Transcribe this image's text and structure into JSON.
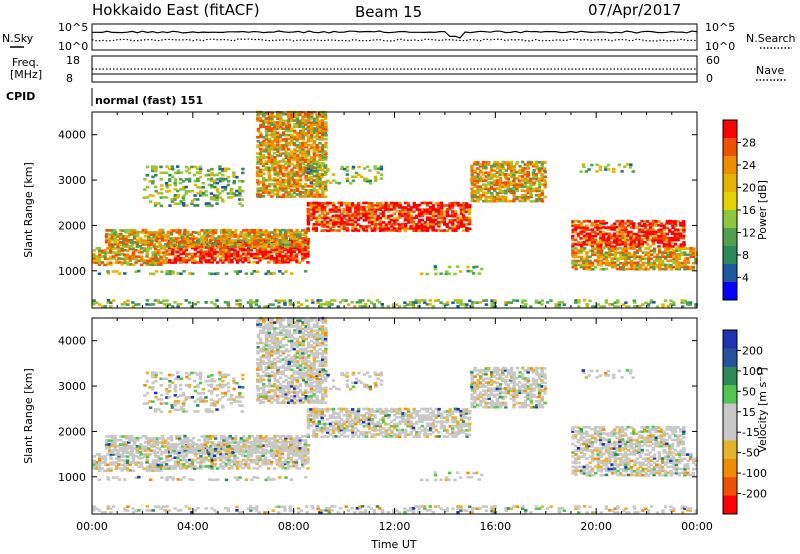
{
  "header": {
    "station": "Hokkaido East (fitACF)",
    "beam": "Beam 15",
    "date": "07/Apr/2017"
  },
  "summary": {
    "nsky_label": "N.Sky",
    "nsearch_label": "N.Search",
    "noise_ticks": [
      "10^5",
      "10^0"
    ],
    "freq_label_1": "Freq.",
    "freq_label_2": "[MHz]",
    "freq_ticks": [
      "18",
      "8"
    ],
    "nave_label": "Nave",
    "nave_ticks": [
      "60",
      "0"
    ],
    "cpid_label": "CPID",
    "cpid_value": "normal (fast) 151"
  },
  "chart_data": [
    {
      "type": "heatmap",
      "panel": "power",
      "ylabel": "Slant Range [km]",
      "ylim": [
        180,
        4500
      ],
      "y_ticks": [
        1000,
        2000,
        3000,
        4000
      ],
      "x_ticks_hours": [
        0,
        4,
        8,
        12,
        16,
        20,
        24
      ],
      "colorbar_label": "Power [dB]",
      "colorbar_ticks": [
        "28",
        "24",
        "20",
        "16",
        "12",
        "8",
        "4"
      ],
      "colorbar_colors": [
        "#ff0000",
        "#f05000",
        "#f08c00",
        "#e6b400",
        "#e6d200",
        "#8cc83c",
        "#50a050",
        "#2a8a5a",
        "#1e5aa0",
        "#0000ff"
      ],
      "echo_bands": [
        {
          "t_start": 0.0,
          "t_end": 8.6,
          "r_start": 900,
          "r_end": 1000,
          "level": "low"
        },
        {
          "t_start": 0.0,
          "t_end": 3.0,
          "r_start": 1100,
          "r_end": 1500,
          "level": "mid"
        },
        {
          "t_start": 3.0,
          "t_end": 8.6,
          "r_start": 1150,
          "r_end": 1700,
          "level": "high"
        },
        {
          "t_start": 0.5,
          "t_end": 8.5,
          "r_start": 1500,
          "r_end": 1900,
          "level": "mid"
        },
        {
          "t_start": 8.5,
          "t_end": 15.0,
          "r_start": 1850,
          "r_end": 2500,
          "level": "high"
        },
        {
          "t_start": 15.0,
          "t_end": 18.0,
          "r_start": 2500,
          "r_end": 3400,
          "level": "mid"
        },
        {
          "t_start": 6.5,
          "t_end": 9.3,
          "r_start": 2600,
          "r_end": 4500,
          "level": "mid"
        },
        {
          "t_start": 19.0,
          "t_end": 23.5,
          "r_start": 1500,
          "r_end": 2100,
          "level": "high"
        },
        {
          "t_start": 19.0,
          "t_end": 24.0,
          "r_start": 1000,
          "r_end": 1500,
          "level": "mid"
        },
        {
          "t_start": 19.2,
          "t_end": 21.5,
          "r_start": 3150,
          "r_end": 3350,
          "level": "low"
        },
        {
          "t_start": 8.5,
          "t_end": 11.5,
          "r_start": 2900,
          "r_end": 3300,
          "level": "low"
        },
        {
          "t_start": 2.0,
          "t_end": 6.0,
          "r_start": 2400,
          "r_end": 3300,
          "level": "low"
        },
        {
          "t_start": 13.0,
          "t_end": 15.5,
          "r_start": 900,
          "r_end": 1100,
          "level": "low"
        },
        {
          "t_start": 0.0,
          "t_end": 24.0,
          "r_start": 180,
          "r_end": 350,
          "level": "low"
        }
      ]
    },
    {
      "type": "heatmap",
      "panel": "velocity",
      "ylabel": "Slant Range [km]",
      "xlabel": "Time UT",
      "ylim": [
        180,
        4500
      ],
      "y_ticks": [
        1000,
        2000,
        3000,
        4000
      ],
      "x_ticks_hours": [
        0,
        4,
        8,
        12,
        16,
        20,
        24
      ],
      "x_tick_labels": [
        "00:00",
        "04:00",
        "08:00",
        "12:00",
        "16:00",
        "20:00",
        "00:00"
      ],
      "colorbar_label": "Velocity [m s⁻¹]",
      "colorbar_ticks": [
        "200",
        "100",
        "50",
        "15",
        "-15",
        "-50",
        "-100",
        "-200"
      ],
      "colorbar_colors": [
        "#1e32b4",
        "#2850a0",
        "#2e8a5a",
        "#50c850",
        "#c8c8c8",
        "#c8c8c8",
        "#e6b428",
        "#f08c00",
        "#f05000",
        "#ff0000"
      ]
    }
  ]
}
